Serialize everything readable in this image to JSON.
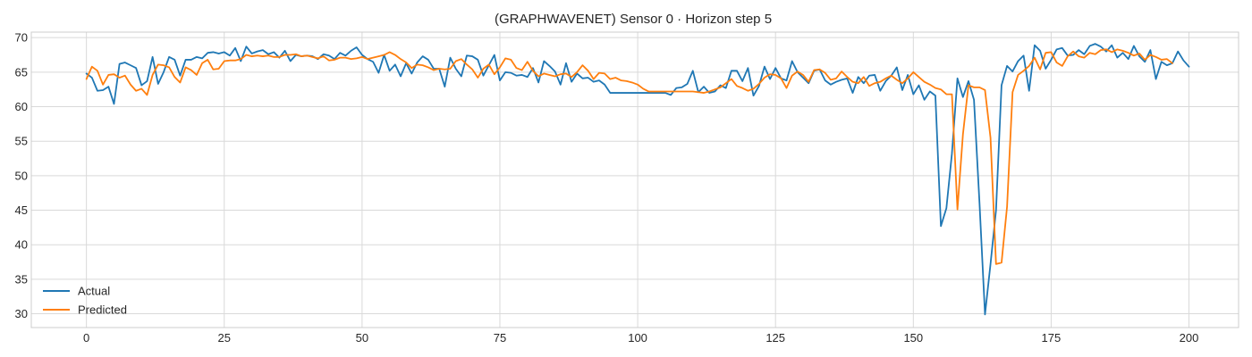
{
  "chart_data": {
    "type": "line",
    "title": "(GRAPHWAVENET) Sensor 0 · Horizon step 5",
    "xlabel": "",
    "ylabel": "",
    "xlim": [
      -10,
      209
    ],
    "ylim": [
      28.0,
      70.8
    ],
    "xticks": [
      0,
      25,
      50,
      75,
      100,
      125,
      150,
      175,
      200
    ],
    "yticks": [
      30,
      35,
      40,
      45,
      50,
      55,
      60,
      65,
      70
    ],
    "grid": true,
    "legend_position": "bottom-left",
    "series": [
      {
        "name": "Actual",
        "color": "#1f77b4",
        "values": [
          64.8,
          64.2,
          62.3,
          62.4,
          62.9,
          60.4,
          66.2,
          66.4,
          66.0,
          65.6,
          63.1,
          63.7,
          67.2,
          63.3,
          65.0,
          67.2,
          66.8,
          64.5,
          66.8,
          66.8,
          67.2,
          67.0,
          67.8,
          67.9,
          67.7,
          67.9,
          67.4,
          68.5,
          66.6,
          68.7,
          67.7,
          68.0,
          68.2,
          67.6,
          67.9,
          67.1,
          68.1,
          66.6,
          67.5,
          67.3,
          67.4,
          67.3,
          66.9,
          67.6,
          67.4,
          66.9,
          67.8,
          67.4,
          68.1,
          68.6,
          67.5,
          66.9,
          66.5,
          64.9,
          67.5,
          65.2,
          66.1,
          64.4,
          66.3,
          64.8,
          66.4,
          67.3,
          66.8,
          65.5,
          65.5,
          62.9,
          67.1,
          65.5,
          64.4,
          67.4,
          67.3,
          66.8,
          64.5,
          66.0,
          67.5,
          63.8,
          65.0,
          64.9,
          64.5,
          64.6,
          64.3,
          65.6,
          63.5,
          66.6,
          65.9,
          65.1,
          63.2,
          66.3,
          63.6,
          64.8,
          64.1,
          64.2,
          63.6,
          63.8,
          63.2,
          62.0,
          62.0,
          62.0,
          62.0,
          62.0,
          62.0,
          62.0,
          62.0,
          62.0,
          62.0,
          62.0,
          61.7,
          62.7,
          62.8,
          63.3,
          65.2,
          62.1,
          62.9,
          62.0,
          62.2,
          63.1,
          62.7,
          65.2,
          65.2,
          63.7,
          65.6,
          61.6,
          63.0,
          65.8,
          64.0,
          65.6,
          64.1,
          63.8,
          66.6,
          65.0,
          64.2,
          63.4,
          65.2,
          65.4,
          63.8,
          63.2,
          63.6,
          63.9,
          64.1,
          62.0,
          64.3,
          63.4,
          64.5,
          64.6,
          62.3,
          63.7,
          64.5,
          65.7,
          62.4,
          64.6,
          61.8,
          63.1,
          61.0,
          62.2,
          61.6,
          42.7,
          45.3,
          53.2,
          64.1,
          61.4,
          63.7,
          61.0,
          46.1,
          29.9,
          37.2,
          45.0,
          63.1,
          65.9,
          65.1,
          66.6,
          67.4,
          62.3,
          68.9,
          68.1,
          65.5,
          66.8,
          68.3,
          68.5,
          67.4,
          67.5,
          68.2,
          67.6,
          68.8,
          69.1,
          68.7,
          68.0,
          68.9,
          67.1,
          67.8,
          66.9,
          68.8,
          67.3,
          66.5,
          68.2,
          64.0,
          66.5,
          66.0,
          66.3,
          68.0,
          66.7,
          65.8
        ]
      },
      {
        "name": "Predicted",
        "color": "#ff7f0e",
        "values": [
          64.0,
          65.8,
          65.2,
          63.2,
          64.6,
          64.7,
          64.2,
          64.5,
          63.2,
          62.3,
          62.6,
          61.7,
          64.6,
          66.1,
          66.0,
          65.7,
          64.3,
          63.5,
          65.7,
          65.3,
          64.6,
          66.3,
          66.8,
          65.4,
          65.5,
          66.6,
          66.7,
          66.7,
          66.9,
          67.5,
          67.3,
          67.4,
          67.3,
          67.4,
          67.2,
          67.2,
          67.5,
          67.5,
          67.6,
          67.3,
          67.4,
          67.2,
          67.0,
          67.3,
          66.7,
          66.8,
          67.1,
          67.1,
          66.9,
          67.0,
          67.2,
          66.9,
          67.1,
          67.3,
          67.5,
          67.9,
          67.5,
          66.9,
          66.4,
          65.6,
          66.1,
          66.0,
          65.7,
          65.3,
          65.5,
          65.4,
          65.5,
          66.6,
          66.9,
          66.1,
          65.4,
          64.2,
          65.5,
          66.1,
          64.7,
          65.7,
          67.0,
          66.8,
          65.6,
          65.3,
          66.5,
          65.2,
          64.4,
          64.8,
          64.6,
          64.4,
          64.7,
          64.8,
          64.3,
          65.0,
          66.0,
          65.2,
          64.0,
          64.9,
          64.8,
          64.0,
          64.2,
          63.8,
          63.7,
          63.5,
          63.2,
          62.6,
          62.2,
          62.2,
          62.2,
          62.2,
          62.2,
          62.2,
          62.2,
          62.2,
          62.2,
          62.1,
          62.0,
          62.2,
          62.5,
          62.8,
          63.4,
          64.0,
          63.0,
          62.7,
          62.3,
          62.6,
          63.3,
          64.2,
          64.7,
          64.6,
          64.1,
          62.7,
          64.5,
          65.1,
          64.6,
          63.6,
          65.3,
          65.4,
          64.9,
          63.9,
          64.1,
          65.1,
          64.3,
          63.6,
          63.4,
          64.3,
          63.0,
          63.4,
          63.6,
          64.1,
          64.5,
          63.9,
          63.4,
          64.1,
          65.0,
          64.3,
          63.6,
          63.2,
          62.7,
          62.5,
          61.8,
          61.8,
          45.1,
          56.0,
          63.1,
          62.8,
          62.8,
          62.4,
          55.5,
          37.2,
          37.4,
          45.5,
          62.1,
          64.6,
          65.2,
          65.9,
          67.1,
          65.4,
          67.8,
          67.9,
          66.4,
          65.9,
          67.3,
          68.0,
          67.3,
          67.1,
          67.8,
          67.6,
          68.2,
          68.3,
          67.9,
          68.3,
          68.1,
          67.8,
          67.4,
          67.7,
          66.8,
          67.5,
          67.2,
          66.8,
          66.9,
          66.3
        ]
      }
    ]
  }
}
